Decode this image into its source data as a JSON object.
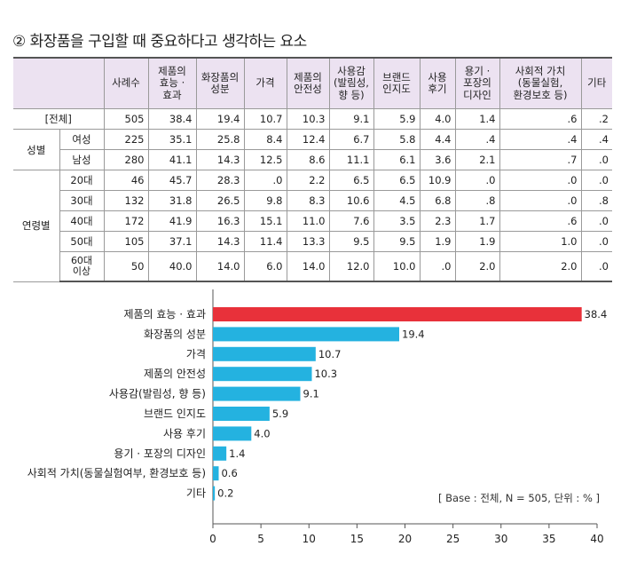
{
  "title": "② 화장품을 구입할 때 중요하다고 생각하는 요소",
  "table": {
    "headers": [
      "",
      "",
      "사례수",
      "제품의\n효능 ·\n효과",
      "화장품의\n성분",
      "가격",
      "제품의\n안전성",
      "사용감\n(발림성,\n향 등)",
      "브랜드\n인지도",
      "사용\n후기",
      "용기 ·\n포장의\n디자인",
      "사회적 가치\n(동물실험,\n환경보호 등)",
      "기타"
    ],
    "total": {
      "label": "[전체]",
      "values": [
        "505",
        "38.4",
        "19.4",
        "10.7",
        "10.3",
        "9.1",
        "5.9",
        "4.0",
        "1.4",
        ".6",
        ".2"
      ]
    },
    "groups": [
      {
        "label": "성별",
        "rows": [
          {
            "label": "여성",
            "values": [
              "225",
              "35.1",
              "25.8",
              "8.4",
              "12.4",
              "6.7",
              "5.8",
              "4.4",
              ".4",
              ".4",
              ".4"
            ]
          },
          {
            "label": "남성",
            "values": [
              "280",
              "41.1",
              "14.3",
              "12.5",
              "8.6",
              "11.1",
              "6.1",
              "3.6",
              "2.1",
              ".7",
              ".0"
            ]
          }
        ]
      },
      {
        "label": "연령별",
        "rows": [
          {
            "label": "20대",
            "values": [
              "46",
              "45.7",
              "28.3",
              ".0",
              "2.2",
              "6.5",
              "6.5",
              "10.9",
              ".0",
              ".0",
              ".0"
            ]
          },
          {
            "label": "30대",
            "values": [
              "132",
              "31.8",
              "26.5",
              "9.8",
              "8.3",
              "10.6",
              "4.5",
              "6.8",
              ".8",
              ".0",
              ".8"
            ]
          },
          {
            "label": "40대",
            "values": [
              "172",
              "41.9",
              "16.3",
              "15.1",
              "11.0",
              "7.6",
              "3.5",
              "2.3",
              "1.7",
              ".6",
              ".0"
            ]
          },
          {
            "label": "50대",
            "values": [
              "105",
              "37.1",
              "14.3",
              "11.4",
              "13.3",
              "9.5",
              "9.5",
              "1.9",
              "1.9",
              "1.0",
              ".0"
            ]
          },
          {
            "label": "60대\n이상",
            "values": [
              "50",
              "40.0",
              "14.0",
              "6.0",
              "14.0",
              "12.0",
              "10.0",
              ".0",
              "2.0",
              "2.0",
              ".0"
            ]
          }
        ]
      }
    ]
  },
  "chart_data": {
    "type": "bar",
    "orientation": "horizontal",
    "categories": [
      "제품의 효능 · 효과",
      "화장품의 성분",
      "가격",
      "제품의 안전성",
      "사용감(발림성, 향 등)",
      "브랜드 인지도",
      "사용 후기",
      "용기 · 포장의 디자인",
      "사회적 가치(동물실험여부, 환경보호 등)",
      "기타"
    ],
    "values": [
      38.4,
      19.4,
      10.7,
      10.3,
      9.1,
      5.9,
      4.0,
      1.4,
      0.6,
      0.2
    ],
    "value_labels": [
      "38.4",
      "19.4",
      "10.7",
      "10.3",
      "9.1",
      "5.9",
      "4.0",
      "1.4",
      "0.6",
      "0.2"
    ],
    "xlim": [
      0,
      40
    ],
    "xticks": [
      "0",
      "5",
      "10",
      "15",
      "20",
      "25",
      "30",
      "35",
      "40"
    ],
    "grid": false,
    "colors": {
      "highlight": "#e8313a",
      "default": "#24b2e0"
    },
    "note": "[ Base : 전체, N = 505, 단위 : % ]"
  }
}
